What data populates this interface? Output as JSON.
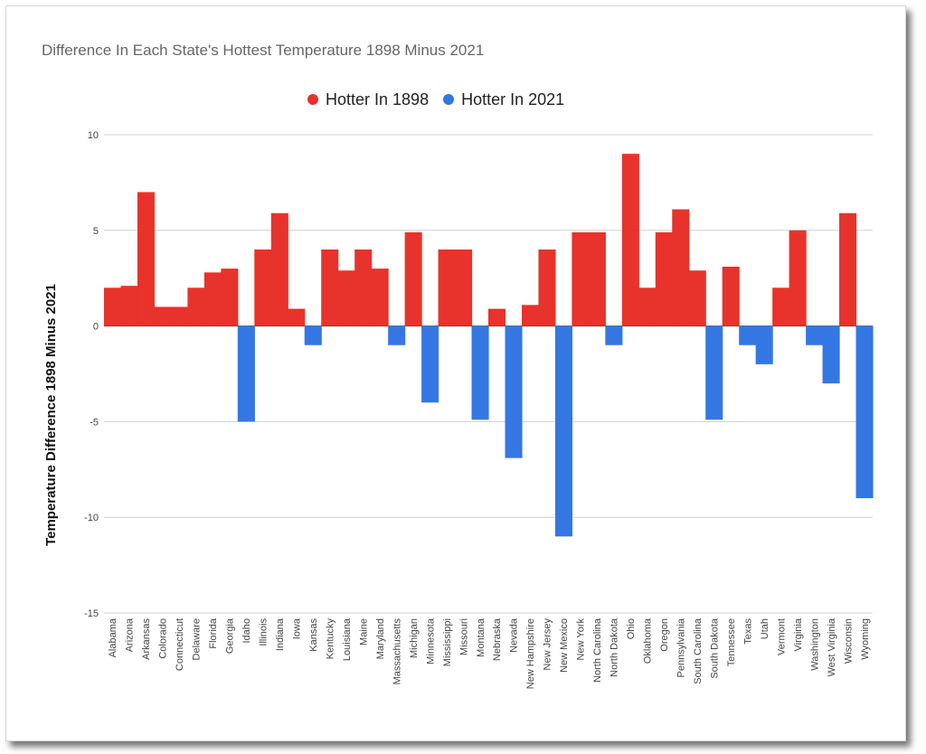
{
  "colors": {
    "positive": "#e7332b",
    "negative": "#3477e3",
    "grid": "#cfcfcf",
    "zero": "#444444"
  },
  "chart_data": {
    "type": "bar",
    "title": "Difference In Each State's Hottest Temperature 1898 Minus 2021",
    "xlabel": "",
    "ylabel": "Temperature Difference 1898 Minus 2021",
    "ylim": [
      -15,
      10
    ],
    "yticks": [
      10,
      5,
      0,
      -5,
      -10,
      -15
    ],
    "grid": true,
    "legend_position": "top-center",
    "legend": [
      {
        "label": "Hotter In 1898",
        "color": "#e7332b"
      },
      {
        "label": "Hotter In 2021",
        "color": "#3477e3"
      }
    ],
    "categories": [
      "Alabama",
      "Arizona",
      "Arkansas",
      "Colorado",
      "Connecticut",
      "Delaware",
      "Florida",
      "Georgia",
      "Idaho",
      "Illinois",
      "Indiana",
      "Iowa",
      "Kansas",
      "Kentucky",
      "Louisiana",
      "Maine",
      "Maryland",
      "Massachusetts",
      "Michigan",
      "Minnesota",
      "Mississippi",
      "Missouri",
      "Montana",
      "Nebraska",
      "Nevada",
      "New Hampshire",
      "New Jersey",
      "New Mexico",
      "New York",
      "North Carolina",
      "North Dakota",
      "Ohio",
      "Oklahoma",
      "Oregon",
      "Pennsylvania",
      "South Carolina",
      "South Dakota",
      "Tennessee",
      "Texas",
      "Utah",
      "Vermont",
      "Virginia",
      "Washington",
      "West Virginia",
      "Wisconsin",
      "Wyoming"
    ],
    "values": [
      2,
      2.1,
      7,
      1,
      1,
      2,
      2.8,
      3,
      -5,
      4,
      5.9,
      0.9,
      -1,
      4,
      2.9,
      4,
      3,
      -1,
      4.9,
      -4,
      4,
      4,
      -4.9,
      0.9,
      -6.9,
      1.1,
      4,
      -11,
      4.9,
      4.9,
      -1,
      9,
      2,
      4.9,
      6.1,
      2.9,
      -4.9,
      3.1,
      -1,
      -2,
      2,
      5,
      -1,
      -3,
      5.9,
      -9
    ]
  }
}
